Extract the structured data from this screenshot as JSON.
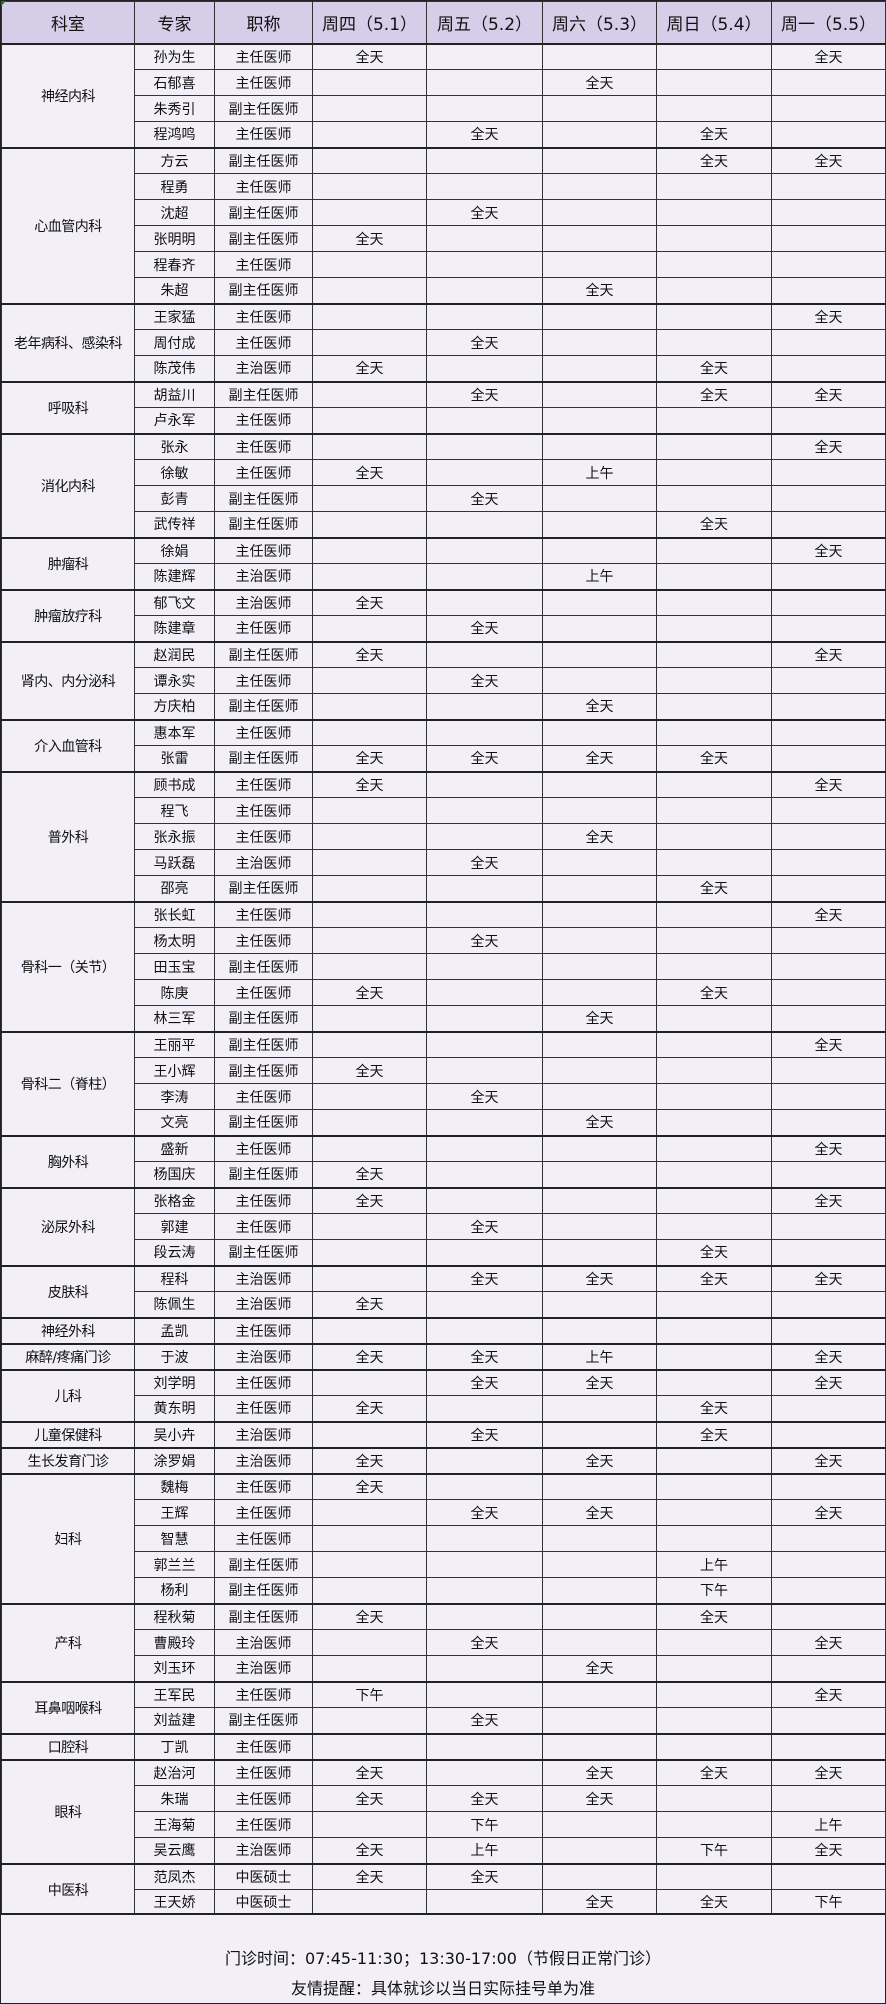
{
  "header": {
    "columns": [
      "科室",
      "专家",
      "职称",
      "周四（5.1）",
      "周五（5.2）",
      "周六（5.3）",
      "周日（5.4）",
      "周一（5.5）"
    ]
  },
  "colors": {
    "header_bg": "#d6cde9",
    "body_bg": "#f2eff8",
    "border": "#222222"
  },
  "departments": [
    {
      "name": "神经内科",
      "doctors": [
        {
          "name": "孙为生",
          "title": "主任医师",
          "schedule": [
            "全天",
            "",
            "",
            "",
            "全天"
          ]
        },
        {
          "name": "石郁喜",
          "title": "主任医师",
          "schedule": [
            "",
            "",
            "全天",
            "",
            ""
          ]
        },
        {
          "name": "朱秀引",
          "title": "副主任医师",
          "schedule": [
            "",
            "",
            "",
            "",
            ""
          ]
        },
        {
          "name": "程鸿鸣",
          "title": "主任医师",
          "schedule": [
            "",
            "全天",
            "",
            "全天",
            ""
          ]
        }
      ]
    },
    {
      "name": "心血管内科",
      "doctors": [
        {
          "name": "方云",
          "title": "副主任医师",
          "schedule": [
            "",
            "",
            "",
            "全天",
            "全天"
          ]
        },
        {
          "name": "程勇",
          "title": "主任医师",
          "schedule": [
            "",
            "",
            "",
            "",
            ""
          ]
        },
        {
          "name": "沈超",
          "title": "副主任医师",
          "schedule": [
            "",
            "全天",
            "",
            "",
            ""
          ]
        },
        {
          "name": "张明明",
          "title": "副主任医师",
          "schedule": [
            "全天",
            "",
            "",
            "",
            ""
          ]
        },
        {
          "name": "程春齐",
          "title": "主任医师",
          "schedule": [
            "",
            "",
            "",
            "",
            ""
          ]
        },
        {
          "name": "朱超",
          "title": "副主任医师",
          "schedule": [
            "",
            "",
            "全天",
            "",
            ""
          ]
        }
      ]
    },
    {
      "name": "老年病科、感染科",
      "doctors": [
        {
          "name": "王家猛",
          "title": "主任医师",
          "schedule": [
            "",
            "",
            "",
            "",
            "全天"
          ]
        },
        {
          "name": "周付成",
          "title": "主任医师",
          "schedule": [
            "",
            "全天",
            "",
            "",
            ""
          ]
        },
        {
          "name": "陈茂伟",
          "title": "主治医师",
          "schedule": [
            "全天",
            "",
            "",
            "全天",
            ""
          ]
        }
      ]
    },
    {
      "name": "呼吸科",
      "doctors": [
        {
          "name": "胡益川",
          "title": "副主任医师",
          "schedule": [
            "",
            "全天",
            "",
            "全天",
            "全天"
          ]
        },
        {
          "name": "卢永军",
          "title": "主任医师",
          "schedule": [
            "",
            "",
            "",
            "",
            ""
          ]
        }
      ]
    },
    {
      "name": "消化内科",
      "doctors": [
        {
          "name": "张永",
          "title": "主任医师",
          "schedule": [
            "",
            "",
            "",
            "",
            "全天"
          ]
        },
        {
          "name": "徐敏",
          "title": "主任医师",
          "schedule": [
            "全天",
            "",
            "上午",
            "",
            ""
          ]
        },
        {
          "name": "彭青",
          "title": "副主任医师",
          "schedule": [
            "",
            "全天",
            "",
            "",
            ""
          ]
        },
        {
          "name": "武传祥",
          "title": "副主任医师",
          "schedule": [
            "",
            "",
            "",
            "全天",
            ""
          ]
        }
      ]
    },
    {
      "name": "肿瘤科",
      "doctors": [
        {
          "name": "徐娟",
          "title": "主任医师",
          "schedule": [
            "",
            "",
            "",
            "",
            "全天"
          ]
        },
        {
          "name": "陈建辉",
          "title": "主治医师",
          "schedule": [
            "",
            "",
            "上午",
            "",
            ""
          ]
        }
      ]
    },
    {
      "name": "肿瘤放疗科",
      "doctors": [
        {
          "name": "郁飞文",
          "title": "主治医师",
          "schedule": [
            "全天",
            "",
            "",
            "",
            ""
          ]
        },
        {
          "name": "陈建章",
          "title": "主任医师",
          "schedule": [
            "",
            "全天",
            "",
            "",
            ""
          ]
        }
      ]
    },
    {
      "name": "肾内、内分泌科",
      "doctors": [
        {
          "name": "赵润民",
          "title": "副主任医师",
          "schedule": [
            "全天",
            "",
            "",
            "",
            "全天"
          ]
        },
        {
          "name": "谭永实",
          "title": "主任医师",
          "schedule": [
            "",
            "全天",
            "",
            "",
            ""
          ]
        },
        {
          "name": "方庆柏",
          "title": "副主任医师",
          "schedule": [
            "",
            "",
            "全天",
            "",
            ""
          ]
        }
      ]
    },
    {
      "name": "介入血管科",
      "doctors": [
        {
          "name": "惠本军",
          "title": "主任医师",
          "schedule": [
            "",
            "",
            "",
            "",
            ""
          ]
        },
        {
          "name": "张雷",
          "title": "副主任医师",
          "schedule": [
            "全天",
            "全天",
            "全天",
            "全天",
            ""
          ]
        }
      ]
    },
    {
      "name": "普外科",
      "doctors": [
        {
          "name": "顾书成",
          "title": "主任医师",
          "schedule": [
            "全天",
            "",
            "",
            "",
            "全天"
          ]
        },
        {
          "name": "程飞",
          "title": "主任医师",
          "schedule": [
            "",
            "",
            "",
            "",
            ""
          ]
        },
        {
          "name": "张永振",
          "title": "主任医师",
          "schedule": [
            "",
            "",
            "全天",
            "",
            ""
          ]
        },
        {
          "name": "马跃磊",
          "title": "主治医师",
          "schedule": [
            "",
            "全天",
            "",
            "",
            ""
          ]
        },
        {
          "name": "邵亮",
          "title": "副主任医师",
          "schedule": [
            "",
            "",
            "",
            "全天",
            ""
          ]
        }
      ]
    },
    {
      "name": "骨科一（关节）",
      "doctors": [
        {
          "name": "张长虹",
          "title": "主任医师",
          "schedule": [
            "",
            "",
            "",
            "",
            "全天"
          ]
        },
        {
          "name": "杨太明",
          "title": "主任医师",
          "schedule": [
            "",
            "全天",
            "",
            "",
            ""
          ]
        },
        {
          "name": "田玉宝",
          "title": "副主任医师",
          "schedule": [
            "",
            "",
            "",
            "",
            ""
          ]
        },
        {
          "name": "陈庚",
          "title": "主任医师",
          "schedule": [
            "全天",
            "",
            "",
            "全天",
            ""
          ]
        },
        {
          "name": "林三军",
          "title": "副主任医师",
          "schedule": [
            "",
            "",
            "全天",
            "",
            ""
          ]
        }
      ]
    },
    {
      "name": "骨科二（脊柱）",
      "doctors": [
        {
          "name": "王丽平",
          "title": "副主任医师",
          "schedule": [
            "",
            "",
            "",
            "",
            "全天"
          ]
        },
        {
          "name": "王小辉",
          "title": "副主任医师",
          "schedule": [
            "全天",
            "",
            "",
            "",
            ""
          ]
        },
        {
          "name": "李涛",
          "title": "主任医师",
          "schedule": [
            "",
            "全天",
            "",
            "",
            ""
          ]
        },
        {
          "name": "文亮",
          "title": "副主任医师",
          "schedule": [
            "",
            "",
            "全天",
            "",
            ""
          ]
        }
      ]
    },
    {
      "name": "胸外科",
      "doctors": [
        {
          "name": "盛新",
          "title": "主任医师",
          "schedule": [
            "",
            "",
            "",
            "",
            "全天"
          ]
        },
        {
          "name": "杨国庆",
          "title": "副主任医师",
          "schedule": [
            "全天",
            "",
            "",
            "",
            ""
          ]
        }
      ]
    },
    {
      "name": "泌尿外科",
      "doctors": [
        {
          "name": "张格金",
          "title": "主任医师",
          "schedule": [
            "全天",
            "",
            "",
            "",
            "全天"
          ]
        },
        {
          "name": "郭建",
          "title": "主任医师",
          "schedule": [
            "",
            "全天",
            "",
            "",
            ""
          ]
        },
        {
          "name": "段云涛",
          "title": "副主任医师",
          "schedule": [
            "",
            "",
            "",
            "全天",
            ""
          ]
        }
      ]
    },
    {
      "name": "皮肤科",
      "doctors": [
        {
          "name": "程科",
          "title": "主治医师",
          "schedule": [
            "",
            "全天",
            "全天",
            "全天",
            "全天"
          ]
        },
        {
          "name": "陈佩生",
          "title": "主治医师",
          "schedule": [
            "全天",
            "",
            "",
            "",
            ""
          ]
        }
      ]
    },
    {
      "name": "神经外科",
      "doctors": [
        {
          "name": "孟凯",
          "title": "主任医师",
          "schedule": [
            "",
            "",
            "",
            "",
            ""
          ]
        }
      ]
    },
    {
      "name": "麻醉/疼痛门诊",
      "doctors": [
        {
          "name": "于波",
          "title": "主治医师",
          "schedule": [
            "全天",
            "全天",
            "上午",
            "",
            "全天"
          ]
        }
      ]
    },
    {
      "name": "儿科",
      "doctors": [
        {
          "name": "刘学明",
          "title": "主任医师",
          "schedule": [
            "",
            "全天",
            "全天",
            "",
            "全天"
          ]
        },
        {
          "name": "黄东明",
          "title": "主任医师",
          "schedule": [
            "全天",
            "",
            "",
            "全天",
            ""
          ]
        }
      ]
    },
    {
      "name": "儿童保健科",
      "doctors": [
        {
          "name": "吴小卉",
          "title": "主治医师",
          "schedule": [
            "",
            "全天",
            "",
            "全天",
            ""
          ]
        }
      ]
    },
    {
      "name": "生长发育门诊",
      "doctors": [
        {
          "name": "涂罗娟",
          "title": "主治医师",
          "schedule": [
            "全天",
            "",
            "全天",
            "",
            "全天"
          ]
        }
      ]
    },
    {
      "name": "妇科",
      "doctors": [
        {
          "name": "魏梅",
          "title": "主任医师",
          "schedule": [
            "全天",
            "",
            "",
            "",
            ""
          ]
        },
        {
          "name": "王辉",
          "title": "主任医师",
          "schedule": [
            "",
            "全天",
            "全天",
            "",
            "全天"
          ]
        },
        {
          "name": "智慧",
          "title": "主任医师",
          "schedule": [
            "",
            "",
            "",
            "",
            ""
          ]
        },
        {
          "name": "郭兰兰",
          "title": "副主任医师",
          "schedule": [
            "",
            "",
            "",
            "上午",
            ""
          ]
        },
        {
          "name": "杨利",
          "title": "副主任医师",
          "schedule": [
            "",
            "",
            "",
            "下午",
            ""
          ]
        }
      ]
    },
    {
      "name": "产科",
      "doctors": [
        {
          "name": "程秋菊",
          "title": "副主任医师",
          "schedule": [
            "全天",
            "",
            "",
            "全天",
            ""
          ]
        },
        {
          "name": "曹殿玲",
          "title": "主治医师",
          "schedule": [
            "",
            "全天",
            "",
            "",
            "全天"
          ]
        },
        {
          "name": "刘玉环",
          "title": "主治医师",
          "schedule": [
            "",
            "",
            "全天",
            "",
            ""
          ]
        }
      ]
    },
    {
      "name": "耳鼻咽喉科",
      "doctors": [
        {
          "name": "王军民",
          "title": "主任医师",
          "schedule": [
            "下午",
            "",
            "",
            "",
            "全天"
          ]
        },
        {
          "name": "刘益建",
          "title": "副主任医师",
          "schedule": [
            "",
            "全天",
            "",
            "",
            ""
          ]
        }
      ]
    },
    {
      "name": "口腔科",
      "doctors": [
        {
          "name": "丁凯",
          "title": "主任医师",
          "schedule": [
            "",
            "",
            "",
            "",
            ""
          ]
        }
      ]
    },
    {
      "name": "眼科",
      "doctors": [
        {
          "name": "赵治河",
          "title": "主任医师",
          "schedule": [
            "全天",
            "",
            "全天",
            "全天",
            "全天"
          ]
        },
        {
          "name": "朱瑞",
          "title": "主任医师",
          "schedule": [
            "全天",
            "全天",
            "全天",
            "",
            ""
          ]
        },
        {
          "name": "王海菊",
          "title": "主任医师",
          "schedule": [
            "",
            "下午",
            "",
            "",
            "上午"
          ]
        },
        {
          "name": "吴云鹰",
          "title": "主治医师",
          "schedule": [
            "全天",
            "上午",
            "",
            "下午",
            "全天"
          ]
        }
      ]
    },
    {
      "name": "中医科",
      "doctors": [
        {
          "name": "范凤杰",
          "title": "中医硕士",
          "schedule": [
            "全天",
            "全天",
            "",
            "",
            ""
          ]
        },
        {
          "name": "王天娇",
          "title": "中医硕士",
          "schedule": [
            "",
            "",
            "全天",
            "全天",
            "下午"
          ]
        }
      ]
    }
  ],
  "footer": {
    "hours": "门诊时间：07:45-11:30；13:30-17:00（节假日正常门诊）",
    "reminder": "友情提醒：具体就诊以当日实际挂号单为准"
  }
}
